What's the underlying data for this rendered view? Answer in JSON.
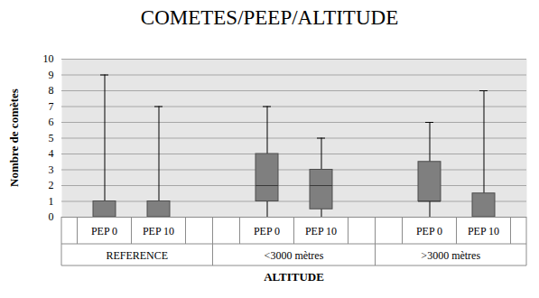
{
  "chart_data": {
    "type": "box",
    "title": "COMETES/PEEP/ALTITUDE",
    "ylabel": "Nombre de comètes",
    "xlabel": "ALTITUDE",
    "color": "#7f7f7f",
    "ylim": [
      0,
      10
    ],
    "yticks": [
      0,
      1,
      2,
      3,
      4,
      5,
      6,
      7,
      8,
      9,
      10
    ],
    "grid": true,
    "groups": [
      {
        "name": "REFERENCE",
        "categories": [
          "PEP 0",
          "PEP 10"
        ],
        "min": [
          0,
          0
        ],
        "q1": [
          0,
          0
        ],
        "median": [
          0,
          0
        ],
        "q3": [
          1,
          1
        ],
        "max": [
          9,
          7
        ]
      },
      {
        "name": "<3000 mètres",
        "categories": [
          "PEP 0",
          "PEP 10"
        ],
        "min": [
          0,
          0
        ],
        "q1": [
          1,
          0.5
        ],
        "median": [
          2,
          2
        ],
        "q3": [
          4,
          3
        ],
        "max": [
          7,
          5
        ]
      },
      {
        "name": ">3000 mètres",
        "categories": [
          "PEP 0",
          "PEP 10"
        ],
        "min": [
          0,
          0
        ],
        "q1": [
          1,
          0
        ],
        "median": [
          1,
          0
        ],
        "q3": [
          3.5,
          1.5
        ],
        "max": [
          6,
          8
        ]
      }
    ]
  }
}
